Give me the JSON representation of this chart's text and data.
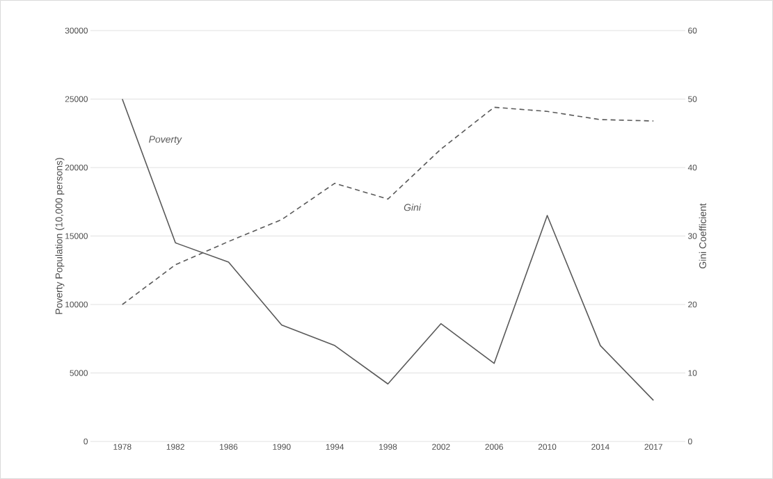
{
  "chart_data": {
    "type": "line",
    "categories": [
      "1978",
      "1982",
      "1986",
      "1990",
      "1994",
      "1998",
      "2002",
      "2006",
      "2010",
      "2014",
      "2017"
    ],
    "series": [
      {
        "name": "Poverty",
        "color": "#595959",
        "line_style": "solid",
        "values": [
          25000,
          14500,
          13100,
          8500,
          7000,
          4200,
          8600,
          5700,
          16500,
          7000,
          3000
        ]
      },
      {
        "name": "Gini",
        "color": "#595959",
        "line_style": "dashed",
        "axis": "y2",
        "values": [
          20,
          25.8,
          29.2,
          32.4,
          37.7,
          35.4,
          42.7,
          48.8,
          48.2,
          47.0,
          46.8
        ]
      }
    ],
    "ylabel": "Poverty Population (10,000 persons)",
    "y2label": "Gini Coefficient",
    "ylim": [
      0,
      30000
    ],
    "yticks": [
      0,
      5000,
      10000,
      15000,
      20000,
      25000,
      30000
    ],
    "y2lim": [
      0,
      60
    ],
    "y2ticks": [
      0,
      10,
      20,
      30,
      40,
      50,
      60
    ],
    "grid": "y",
    "legend": false,
    "marker": "none"
  }
}
